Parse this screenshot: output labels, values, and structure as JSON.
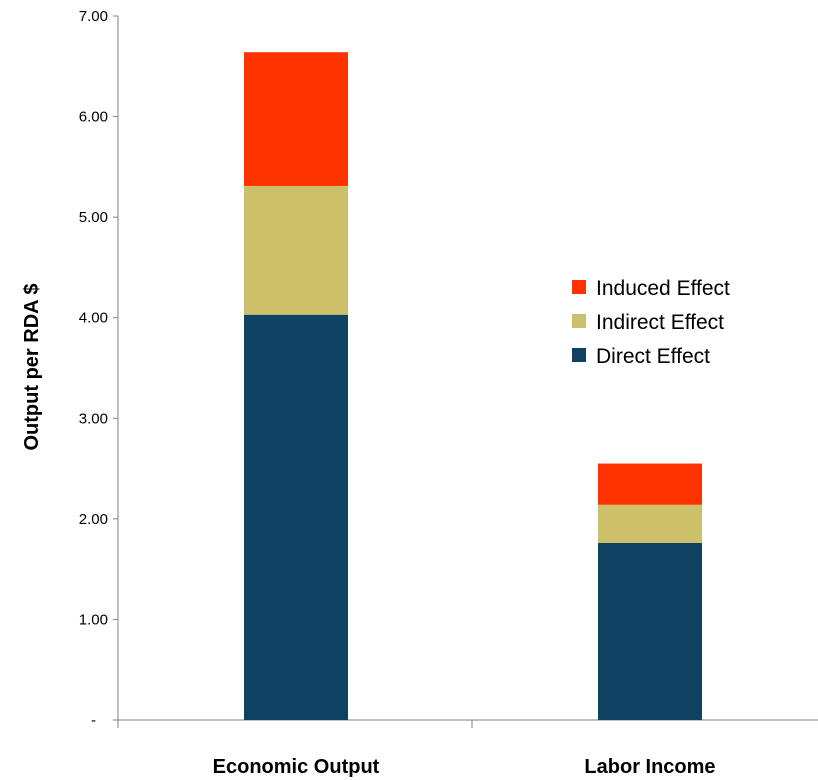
{
  "chart_data": {
    "type": "bar",
    "stacked": true,
    "categories": [
      "Economic Output",
      "Labor Income"
    ],
    "series": [
      {
        "name": "Direct Effect",
        "color": "#0f4163",
        "values": [
          4.03,
          1.76
        ]
      },
      {
        "name": "Indirect Effect",
        "color": "#ccc06a",
        "values": [
          1.28,
          0.38
        ]
      },
      {
        "name": "Induced Effect",
        "color": "#ff3300",
        "values": [
          1.33,
          0.41
        ]
      }
    ],
    "ylabel": "Output per RDA $",
    "xlabel": "",
    "ylim": [
      0,
      7
    ],
    "yticks": [
      0,
      1,
      2,
      3,
      4,
      5,
      6,
      7
    ],
    "ytick_labels": [
      "-",
      "1.00",
      "2.00",
      "3.00",
      "4.00",
      "5.00",
      "6.00",
      "7.00"
    ],
    "legend": {
      "position": "right",
      "entries": [
        "Induced Effect",
        "Indirect Effect",
        "Direct Effect"
      ]
    },
    "grid": false
  }
}
